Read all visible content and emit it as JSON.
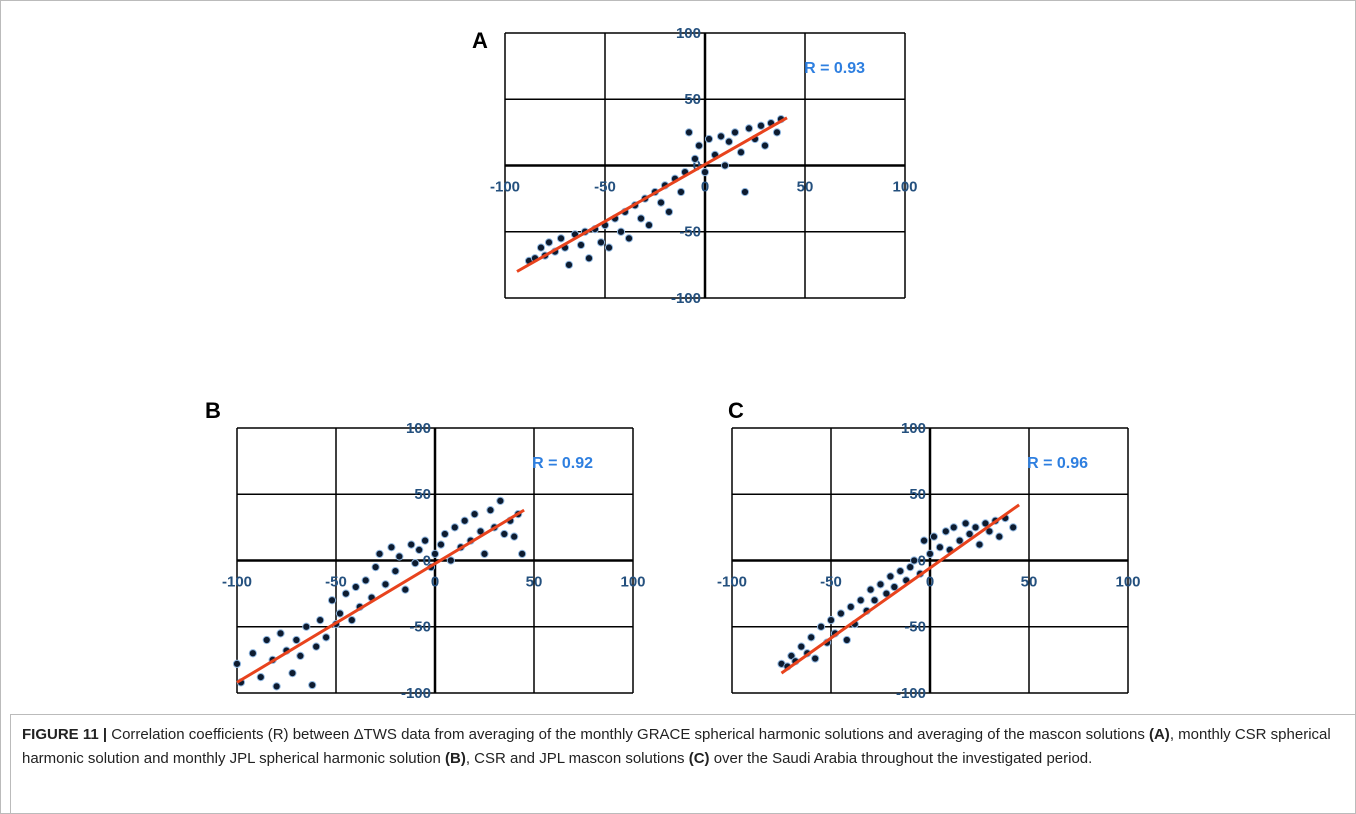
{
  "chart_data": [
    {
      "type": "scatter",
      "panel": "A",
      "annotation": "R = 0.93",
      "xlim": [
        -100,
        100
      ],
      "ylim": [
        -100,
        100
      ],
      "xticks": [
        -100,
        -50,
        0,
        50,
        100
      ],
      "yticks": [
        -100,
        -50,
        0,
        50,
        100
      ],
      "grid": true,
      "points": {
        "color": "#0d1b2f",
        "x": [
          -88,
          -85,
          -82,
          -80,
          -78,
          -75,
          -72,
          -70,
          -68,
          -65,
          -62,
          -60,
          -58,
          -55,
          -52,
          -50,
          -48,
          -45,
          -42,
          -40,
          -38,
          -35,
          -32,
          -30,
          -28,
          -25,
          -22,
          -20,
          -18,
          -15,
          -12,
          -10,
          -8,
          -5,
          -3,
          0,
          2,
          5,
          8,
          10,
          12,
          15,
          18,
          20,
          22,
          25,
          28,
          30,
          33,
          36,
          38
        ],
        "y": [
          -72,
          -70,
          -62,
          -68,
          -58,
          -65,
          -55,
          -62,
          -75,
          -52,
          -60,
          -50,
          -70,
          -48,
          -58,
          -45,
          -62,
          -40,
          -50,
          -35,
          -55,
          -30,
          -40,
          -25,
          -45,
          -20,
          -28,
          -15,
          -35,
          -10,
          -20,
          -5,
          25,
          5,
          15,
          -5,
          20,
          8,
          22,
          0,
          18,
          25,
          10,
          -20,
          28,
          20,
          30,
          15,
          32,
          25,
          35
        ]
      },
      "fit": {
        "color": "#e8431d",
        "x": [
          -94,
          41
        ],
        "y": [
          -80,
          36
        ]
      }
    },
    {
      "type": "scatter",
      "panel": "B",
      "annotation": "R = 0.92",
      "xlim": [
        -100,
        100
      ],
      "ylim": [
        -100,
        100
      ],
      "xticks": [
        -100,
        -50,
        0,
        50,
        100
      ],
      "yticks": [
        -100,
        -50,
        0,
        50,
        100
      ],
      "grid": true,
      "points": {
        "color": "#0d1b2f",
        "x": [
          -100,
          -98,
          -92,
          -88,
          -85,
          -82,
          -80,
          -78,
          -75,
          -72,
          -70,
          -68,
          -65,
          -62,
          -60,
          -58,
          -55,
          -52,
          -50,
          -48,
          -45,
          -42,
          -40,
          -38,
          -35,
          -32,
          -30,
          -28,
          -25,
          -22,
          -20,
          -18,
          -15,
          -12,
          -10,
          -8,
          -5,
          -2,
          0,
          3,
          5,
          8,
          10,
          13,
          15,
          18,
          20,
          23,
          25,
          28,
          30,
          33,
          35,
          38,
          40,
          42,
          44
        ],
        "y": [
          -78,
          -92,
          -70,
          -88,
          -60,
          -75,
          -95,
          -55,
          -68,
          -85,
          -60,
          -72,
          -50,
          -94,
          -65,
          -45,
          -58,
          -30,
          -48,
          -40,
          -25,
          -45,
          -20,
          -35,
          -15,
          -28,
          -5,
          5,
          -18,
          10,
          -8,
          3,
          -22,
          12,
          -2,
          8,
          15,
          -5,
          5,
          12,
          20,
          0,
          25,
          10,
          30,
          15,
          35,
          22,
          5,
          38,
          25,
          45,
          20,
          30,
          18,
          35,
          5
        ]
      },
      "fit": {
        "color": "#e8431d",
        "x": [
          -100,
          45
        ],
        "y": [
          -92,
          38
        ]
      }
    },
    {
      "type": "scatter",
      "panel": "C",
      "annotation": "R = 0.96",
      "xlim": [
        -100,
        100
      ],
      "ylim": [
        -100,
        100
      ],
      "xticks": [
        -100,
        -50,
        0,
        50,
        100
      ],
      "yticks": [
        -100,
        -50,
        0,
        50,
        100
      ],
      "grid": true,
      "points": {
        "color": "#0d1b2f",
        "x": [
          -75,
          -72,
          -70,
          -68,
          -65,
          -62,
          -60,
          -58,
          -55,
          -52,
          -50,
          -48,
          -45,
          -42,
          -40,
          -38,
          -35,
          -32,
          -30,
          -28,
          -25,
          -22,
          -20,
          -18,
          -15,
          -12,
          -10,
          -8,
          -5,
          -3,
          0,
          2,
          5,
          8,
          10,
          12,
          15,
          18,
          20,
          23,
          25,
          28,
          30,
          33,
          35,
          38,
          42
        ],
        "y": [
          -78,
          -80,
          -72,
          -76,
          -65,
          -70,
          -58,
          -74,
          -50,
          -62,
          -45,
          -55,
          -40,
          -60,
          -35,
          -48,
          -30,
          -38,
          -22,
          -30,
          -18,
          -25,
          -12,
          -20,
          -8,
          -15,
          -5,
          0,
          -10,
          15,
          5,
          18,
          10,
          22,
          8,
          25,
          15,
          28,
          20,
          25,
          12,
          28,
          22,
          30,
          18,
          32,
          25
        ]
      },
      "fit": {
        "color": "#e8431d",
        "x": [
          -75,
          45
        ],
        "y": [
          -85,
          42
        ]
      }
    }
  ],
  "caption": {
    "label": "FIGURE 11 |",
    "parts": [
      "Correlation coefficients (R) between ΔTWS data from averaging of the monthly GRACE spherical harmonic solutions and averaging of the mascon solutions ",
      "(A)",
      ", monthly CSR spherical harmonic solution and monthly JPL spherical harmonic solution ",
      "(B)",
      ", CSR and JPL mascon solutions ",
      "(C)",
      " over the Saudi Arabia throughout the investigated period."
    ]
  }
}
